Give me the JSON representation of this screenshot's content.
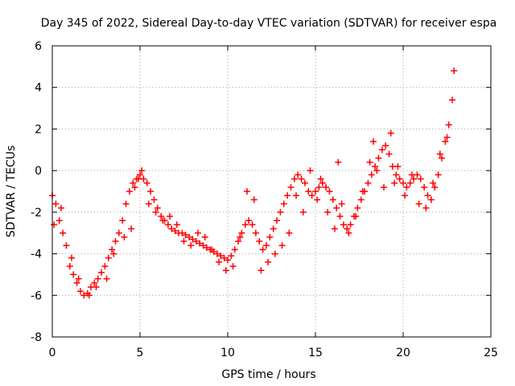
{
  "chart_data": {
    "type": "scatter",
    "title": "Day 345 of 2022, Sidereal Day-to-day VTEC variation (SDTVAR) for receiver espa",
    "xlabel": "GPS time / hours",
    "ylabel": "SDTVAR / TECUs",
    "xlim": [
      0,
      25
    ],
    "ylim": [
      -8,
      6
    ],
    "x_ticks": [
      0,
      5,
      10,
      15,
      20,
      25
    ],
    "y_ticks": [
      -8,
      -6,
      -4,
      -2,
      0,
      2,
      4,
      6
    ],
    "grid": true,
    "marker": "+",
    "series": [
      {
        "name": "SDTVAR",
        "color": "#ff0000",
        "x": [
          0.0,
          0.2,
          0.4,
          0.6,
          0.8,
          1.0,
          1.2,
          1.4,
          1.6,
          1.8,
          2.0,
          2.2,
          2.4,
          2.6,
          2.8,
          3.0,
          3.2,
          3.4,
          3.6,
          3.8,
          4.0,
          4.2,
          4.4,
          4.6,
          4.8,
          5.0,
          5.2,
          5.4,
          5.6,
          5.8,
          6.0,
          6.2,
          6.4,
          6.6,
          6.8,
          7.0,
          7.2,
          7.4,
          7.6,
          7.8,
          8.0,
          8.2,
          8.4,
          8.6,
          8.8,
          9.0,
          9.2,
          9.4,
          9.6,
          9.8,
          10.0,
          10.2,
          10.4,
          10.6,
          10.8,
          11.0,
          11.2,
          11.4,
          11.6,
          11.8,
          12.0,
          12.2,
          12.4,
          12.6,
          12.8,
          13.0,
          13.2,
          13.4,
          13.6,
          13.8,
          14.0,
          14.2,
          14.4,
          14.6,
          14.8,
          15.0,
          15.2,
          15.4,
          15.6,
          15.8,
          16.0,
          16.2,
          16.4,
          16.6,
          16.8,
          17.0,
          17.2,
          17.4,
          17.6,
          17.8,
          18.0,
          18.2,
          18.4,
          18.6,
          18.8,
          19.0,
          19.2,
          19.4,
          19.6,
          19.8,
          20.0,
          20.2,
          20.4,
          20.6,
          20.8,
          21.0,
          21.2,
          21.4,
          21.6,
          21.8,
          22.0,
          22.2,
          22.4,
          22.6,
          22.8,
          0.1,
          0.5,
          1.1,
          1.5,
          2.1,
          2.5,
          3.1,
          3.5,
          4.1,
          4.5,
          4.7,
          4.9,
          5.1,
          5.5,
          5.9,
          6.3,
          6.7,
          7.1,
          7.5,
          7.9,
          8.3,
          8.7,
          9.1,
          9.5,
          9.9,
          10.3,
          10.7,
          11.1,
          11.5,
          11.9,
          12.3,
          12.7,
          13.1,
          13.5,
          13.9,
          14.3,
          14.7,
          15.1,
          15.3,
          15.7,
          16.1,
          16.3,
          16.5,
          16.9,
          17.3,
          17.7,
          18.1,
          18.3,
          18.5,
          18.9,
          19.3,
          19.5,
          19.7,
          20.1,
          20.5,
          20.9,
          21.3,
          21.7,
          22.1,
          22.5,
          22.9
        ],
        "y": [
          -1.2,
          -1.6,
          -2.4,
          -3.0,
          -3.6,
          -4.6,
          -5.0,
          -5.4,
          -5.8,
          -6.0,
          -5.9,
          -5.6,
          -5.4,
          -5.2,
          -4.9,
          -4.6,
          -4.2,
          -3.8,
          -3.4,
          -3.0,
          -2.4,
          -1.6,
          -1.0,
          -0.6,
          -0.4,
          -0.2,
          -0.4,
          -0.6,
          -1.0,
          -1.4,
          -1.8,
          -2.2,
          -2.4,
          -2.6,
          -2.8,
          -2.9,
          -3.0,
          -3.0,
          -3.1,
          -3.2,
          -3.3,
          -3.4,
          -3.5,
          -3.6,
          -3.7,
          -3.8,
          -3.9,
          -4.0,
          -4.1,
          -4.2,
          -4.3,
          -4.1,
          -3.8,
          -3.4,
          -3.0,
          -2.6,
          -2.4,
          -2.6,
          -3.0,
          -3.4,
          -3.8,
          -3.6,
          -3.2,
          -2.8,
          -2.4,
          -2.0,
          -1.6,
          -1.2,
          -0.8,
          -0.4,
          -0.2,
          -0.4,
          -0.6,
          -1.0,
          -1.2,
          -1.0,
          -0.8,
          -0.6,
          -0.8,
          -1.0,
          -1.4,
          -1.8,
          -2.2,
          -2.6,
          -2.8,
          -2.6,
          -2.2,
          -1.8,
          -1.4,
          -1.0,
          -0.6,
          -0.2,
          0.2,
          0.6,
          1.0,
          1.2,
          0.8,
          0.2,
          -0.2,
          -0.4,
          -0.6,
          -0.8,
          -0.6,
          -0.4,
          -0.2,
          -0.4,
          -0.8,
          -1.2,
          -1.4,
          -0.8,
          -0.2,
          0.6,
          1.4,
          2.2,
          3.4,
          -2.6,
          -1.8,
          -4.2,
          -5.2,
          -6.0,
          -5.6,
          -5.2,
          -4.0,
          -3.2,
          -2.8,
          -0.8,
          -0.4,
          0.0,
          -1.6,
          -2.0,
          -2.4,
          -2.2,
          -2.6,
          -3.4,
          -3.6,
          -3.0,
          -3.2,
          -3.8,
          -4.4,
          -4.8,
          -4.6,
          -3.2,
          -1.0,
          -1.4,
          -4.8,
          -4.4,
          -4.0,
          -3.6,
          -3.0,
          -1.2,
          -2.0,
          0.0,
          -1.4,
          -0.4,
          -2.0,
          -2.8,
          0.4,
          -1.6,
          -3.0,
          -2.2,
          -1.0,
          0.4,
          1.4,
          0.0,
          -0.8,
          1.8,
          -0.6,
          0.2,
          -1.2,
          -0.2,
          -1.6,
          -1.8,
          -0.6,
          0.8,
          1.6,
          4.8
        ]
      }
    ]
  }
}
